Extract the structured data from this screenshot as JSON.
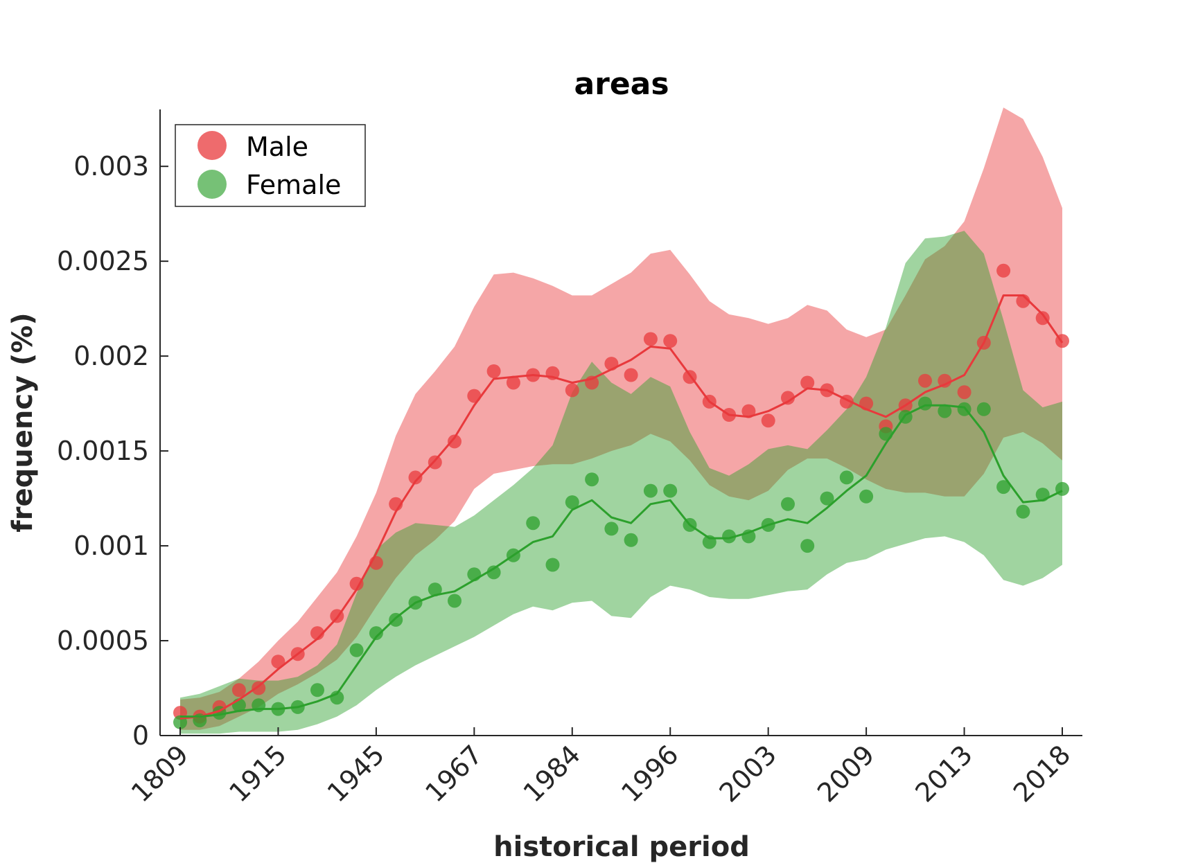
{
  "chart_data": {
    "type": "line",
    "title": "areas",
    "xlabel": "historical period",
    "ylabel": "frequency (%)",
    "x_tick_labels": [
      "1809",
      "1915",
      "1945",
      "1967",
      "1984",
      "1996",
      "2003",
      "2009",
      "2013",
      "2018"
    ],
    "y_ticks": [
      0,
      0.0005,
      0.001,
      0.0015,
      0.002,
      0.0025,
      0.003
    ],
    "y_tick_labels": [
      "0",
      "0.0005",
      "0.001",
      "0.0015",
      "0.002",
      "0.0025",
      "0.003"
    ],
    "ylim": [
      0,
      0.0033
    ],
    "legend_position": "top-left",
    "series": [
      {
        "name": "Male",
        "color": "#e8393c",
        "points": [
          0.00012,
          0.0001,
          0.00015,
          0.00024,
          0.00025,
          0.00039,
          0.00043,
          0.00054,
          0.00063,
          0.0008,
          0.00091,
          0.00122,
          0.00136,
          0.00144,
          0.00155,
          0.00179,
          0.00192,
          0.00186,
          0.0019,
          0.00191,
          0.00182,
          0.00186,
          0.00196,
          0.0019,
          0.00209,
          0.00208,
          0.00189,
          0.00176,
          0.00169,
          0.00171,
          0.00166,
          0.00178,
          0.00186,
          0.00182,
          0.00176,
          0.00175,
          0.00163,
          0.00174,
          0.00187,
          0.00187,
          0.00181,
          0.00207,
          0.00245,
          0.00229,
          0.0022,
          0.00208
        ],
        "trend": [
          9e-05,
          0.0001,
          0.00013,
          0.00019,
          0.00026,
          0.00035,
          0.00043,
          0.00051,
          0.00062,
          0.00077,
          0.00096,
          0.00118,
          0.00134,
          0.00145,
          0.00157,
          0.00174,
          0.00188,
          0.00189,
          0.0019,
          0.00189,
          0.00186,
          0.00188,
          0.00193,
          0.00198,
          0.00205,
          0.00204,
          0.0019,
          0.00176,
          0.00169,
          0.00168,
          0.00171,
          0.00176,
          0.00183,
          0.00182,
          0.00177,
          0.00172,
          0.00168,
          0.00174,
          0.00181,
          0.00185,
          0.0019,
          0.00207,
          0.00232,
          0.00232,
          0.00222,
          0.00207
        ],
        "band_upper": [
          0.00019,
          0.0002,
          0.00023,
          0.0003,
          0.00039,
          0.0005,
          0.0006,
          0.00073,
          0.00086,
          0.00105,
          0.00128,
          0.00158,
          0.0018,
          0.00192,
          0.00205,
          0.00226,
          0.00243,
          0.00244,
          0.00241,
          0.00237,
          0.00232,
          0.00232,
          0.00238,
          0.00244,
          0.00254,
          0.00256,
          0.00243,
          0.00229,
          0.00222,
          0.0022,
          0.00217,
          0.0022,
          0.00227,
          0.00224,
          0.00214,
          0.0021,
          0.00214,
          0.00232,
          0.00251,
          0.00258,
          0.00271,
          0.00299,
          0.00331,
          0.00325,
          0.00305,
          0.00278
        ],
        "band_lower": [
          3e-05,
          3e-05,
          5e-05,
          0.0001,
          0.00015,
          0.00022,
          0.00027,
          0.00033,
          0.0004,
          0.00052,
          0.00068,
          0.00083,
          0.00095,
          0.00103,
          0.00113,
          0.0013,
          0.00138,
          0.0014,
          0.00142,
          0.00143,
          0.00143,
          0.00146,
          0.0015,
          0.00153,
          0.00159,
          0.00155,
          0.00145,
          0.00132,
          0.00126,
          0.00124,
          0.00129,
          0.0014,
          0.00146,
          0.00146,
          0.00141,
          0.00135,
          0.0013,
          0.00128,
          0.00128,
          0.00126,
          0.00126,
          0.00138,
          0.00157,
          0.0016,
          0.00154,
          0.00145
        ]
      },
      {
        "name": "Female",
        "color": "#2ca02c",
        "points": [
          7e-05,
          8e-05,
          0.00012,
          0.00016,
          0.00016,
          0.00014,
          0.00015,
          0.00024,
          0.0002,
          0.00045,
          0.00054,
          0.00061,
          0.0007,
          0.00077,
          0.00071,
          0.00085,
          0.00086,
          0.00095,
          0.00112,
          0.0009,
          0.00123,
          0.00135,
          0.00109,
          0.00103,
          0.00129,
          0.00129,
          0.00111,
          0.00102,
          0.00105,
          0.00105,
          0.00111,
          0.00122,
          0.001,
          0.00125,
          0.00136,
          0.00126,
          0.00159,
          0.00168,
          0.00175,
          0.00171,
          0.00172,
          0.00172,
          0.00131,
          0.00118,
          0.00127,
          0.0013
        ],
        "trend": [
          0.0001,
          0.0001,
          0.00011,
          0.00013,
          0.00014,
          0.00014,
          0.00015,
          0.00018,
          0.00022,
          0.00037,
          0.00052,
          0.00062,
          0.0007,
          0.00074,
          0.00076,
          0.00082,
          0.00088,
          0.00095,
          0.00102,
          0.00105,
          0.00119,
          0.00124,
          0.00115,
          0.00112,
          0.00122,
          0.00124,
          0.00111,
          0.00104,
          0.00104,
          0.00107,
          0.00111,
          0.00114,
          0.00112,
          0.0012,
          0.00129,
          0.00137,
          0.00154,
          0.00169,
          0.00174,
          0.00174,
          0.00173,
          0.0016,
          0.00137,
          0.00123,
          0.00124,
          0.00129
        ],
        "band_upper": [
          0.0002,
          0.00022,
          0.00026,
          0.0003,
          0.00029,
          0.00029,
          0.00031,
          0.00037,
          0.00048,
          0.00075,
          0.00098,
          0.00107,
          0.00112,
          0.00111,
          0.0011,
          0.00116,
          0.00124,
          0.00132,
          0.00141,
          0.00153,
          0.00181,
          0.00197,
          0.00186,
          0.0018,
          0.00189,
          0.00184,
          0.0016,
          0.00141,
          0.00137,
          0.00143,
          0.00151,
          0.00153,
          0.00151,
          0.00161,
          0.00172,
          0.00189,
          0.00215,
          0.00249,
          0.00262,
          0.00263,
          0.00266,
          0.00254,
          0.00219,
          0.00182,
          0.00173,
          0.00176
        ],
        "band_lower": [
          1e-05,
          1e-05,
          1e-05,
          2e-05,
          2e-05,
          2e-05,
          3e-05,
          6e-05,
          0.0001,
          0.00016,
          0.00024,
          0.00031,
          0.00037,
          0.00042,
          0.00047,
          0.00052,
          0.00058,
          0.00064,
          0.00068,
          0.00066,
          0.0007,
          0.00071,
          0.00063,
          0.00062,
          0.00073,
          0.00079,
          0.00077,
          0.00073,
          0.00072,
          0.00072,
          0.00074,
          0.00076,
          0.00077,
          0.00085,
          0.00091,
          0.00093,
          0.00098,
          0.00101,
          0.00104,
          0.00105,
          0.00102,
          0.00095,
          0.00082,
          0.00079,
          0.00083,
          0.0009
        ]
      }
    ]
  }
}
